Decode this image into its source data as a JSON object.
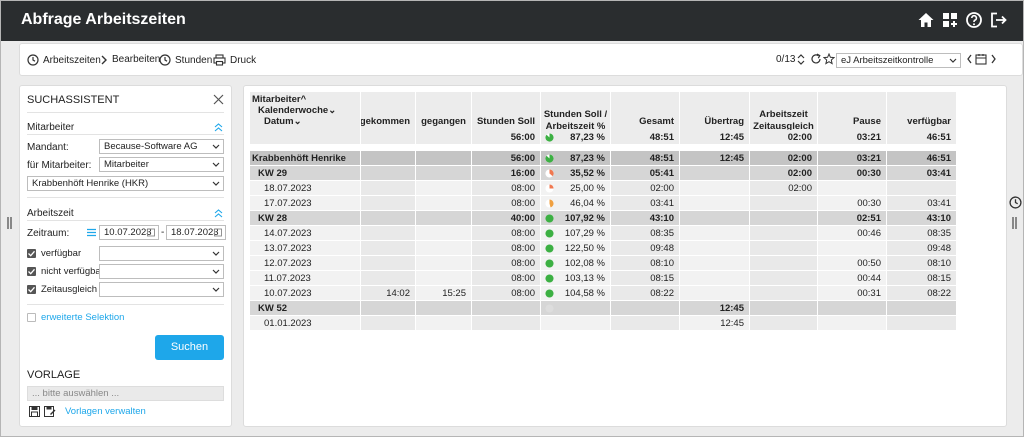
{
  "app": {
    "title": "Abfrage Arbeitszeiten"
  },
  "header_icons": [
    "home-icon",
    "dashboard-add-icon",
    "help-icon",
    "logout-icon"
  ],
  "toolbar": {
    "items": [
      {
        "label": "Arbeitszeiten",
        "icon": "clock-icon"
      },
      {
        "label": "Bearbeiten",
        "icon": "chevron-right-icon"
      },
      {
        "label": "Stunden",
        "icon": "clock-icon"
      },
      {
        "label": "Druck",
        "icon": "printer-icon"
      }
    ],
    "pager": "0/13",
    "view_select": "eJ Arbeitszeitkontrolle"
  },
  "sidebar": {
    "title": "SUCHASSISTENT",
    "section_employee": "Mitarbeiter",
    "mandant_label": "Mandant:",
    "mandant_value": "Because-Software AG",
    "for_employee_label": "für Mitarbeiter:",
    "for_employee_value": "Mitarbeiter",
    "employee_value": "Krabbenhöft Henrike (HKR)",
    "section_worktime": "Arbeitszeit",
    "period_label": "Zeitraum:",
    "period_from": "10.07.2023",
    "period_sep": "-",
    "period_to": "18.07.2023",
    "checks": [
      {
        "label": "verfügbar",
        "checked": true
      },
      {
        "label": "nicht verfügbar",
        "checked": true
      },
      {
        "label": "Zeitausgleich",
        "checked": true
      }
    ],
    "extended_label": "erweiterte Selektion",
    "search_label": "Suchen",
    "template_title": "VORLAGE",
    "template_placeholder": "... bitte auswählen ...",
    "manage_templates_label": "Vorlagen verwalten"
  },
  "table": {
    "group_headers": {
      "employee": "Mitarbeiter",
      "week": "Kalenderwoche",
      "date": "Datum"
    },
    "columns": {
      "came": "gekommen",
      "left": "gegangen",
      "target": "Stunden Soll",
      "ratio_line1": "Stunden Soll /",
      "ratio_line2": "Arbeitszeit %",
      "total": "Gesamt",
      "carry": "Übertrag",
      "worktime_group": "Arbeitszeit",
      "comp": "Zeitausgleich",
      "pause": "Pause",
      "avail": "verfügbar"
    },
    "totals": {
      "target": "56:00",
      "pct": "87,23 %",
      "total": "48:51",
      "carry": "12:45",
      "comp": "02:00",
      "pause": "03:21",
      "avail": "46:51",
      "pie": 0.87,
      "color": "#3cb043"
    },
    "rows": [
      {
        "kind": "employee",
        "label": "Krabbenhöft Henrike",
        "came": "",
        "left": "",
        "target": "56:00",
        "pct": "87,23 %",
        "total": "48:51",
        "carry": "12:45",
        "comp": "02:00",
        "pause": "03:21",
        "avail": "46:51",
        "pie": 0.87,
        "color": "#3cb043"
      },
      {
        "kind": "week",
        "label": "KW 29",
        "came": "",
        "left": "",
        "target": "16:00",
        "pct": "35,52 %",
        "total": "05:41",
        "carry": "",
        "comp": "02:00",
        "pause": "00:30",
        "avail": "03:41",
        "pie": 0.36,
        "color": "#f07850"
      },
      {
        "kind": "day",
        "label": "18.07.2023",
        "came": "",
        "left": "",
        "target": "08:00",
        "pct": "25,00 %",
        "total": "02:00",
        "carry": "",
        "comp": "02:00",
        "pause": "",
        "avail": "",
        "pie": 0.25,
        "color": "#f07850"
      },
      {
        "kind": "day",
        "label": "17.07.2023",
        "came": "",
        "left": "",
        "target": "08:00",
        "pct": "46,04 %",
        "total": "03:41",
        "carry": "",
        "comp": "",
        "pause": "00:30",
        "avail": "03:41",
        "pie": 0.46,
        "color": "#f0a040"
      },
      {
        "kind": "week",
        "label": "KW 28",
        "came": "",
        "left": "",
        "target": "40:00",
        "pct": "107,92 %",
        "total": "43:10",
        "carry": "",
        "comp": "",
        "pause": "02:51",
        "avail": "43:10",
        "pie": 1,
        "color": "#3cb043"
      },
      {
        "kind": "day",
        "label": "14.07.2023",
        "came": "",
        "left": "",
        "target": "08:00",
        "pct": "107,29 %",
        "total": "08:35",
        "carry": "",
        "comp": "",
        "pause": "00:46",
        "avail": "08:35",
        "pie": 1,
        "color": "#3cb043"
      },
      {
        "kind": "day",
        "label": "13.07.2023",
        "came": "",
        "left": "",
        "target": "08:00",
        "pct": "122,50 %",
        "total": "09:48",
        "carry": "",
        "comp": "",
        "pause": "",
        "avail": "09:48",
        "pie": 1,
        "color": "#3cb043"
      },
      {
        "kind": "day",
        "label": "12.07.2023",
        "came": "",
        "left": "",
        "target": "08:00",
        "pct": "102,08 %",
        "total": "08:10",
        "carry": "",
        "comp": "",
        "pause": "00:50",
        "avail": "08:10",
        "pie": 1,
        "color": "#3cb043"
      },
      {
        "kind": "day",
        "label": "11.07.2023",
        "came": "",
        "left": "",
        "target": "08:00",
        "pct": "103,13 %",
        "total": "08:15",
        "carry": "",
        "comp": "",
        "pause": "00:44",
        "avail": "08:15",
        "pie": 1,
        "color": "#3cb043"
      },
      {
        "kind": "day",
        "label": "10.07.2023",
        "came": "14:02",
        "left": "15:25",
        "target": "08:00",
        "pct": "104,58 %",
        "total": "08:22",
        "carry": "",
        "comp": "",
        "pause": "00:31",
        "avail": "08:22",
        "pie": 1,
        "color": "#3cb043"
      },
      {
        "kind": "week",
        "label": "KW 52",
        "came": "",
        "left": "",
        "target": "",
        "pct": "",
        "total": "",
        "carry": "12:45",
        "comp": "",
        "pause": "",
        "avail": "",
        "pie": 1,
        "color": "#dddddd"
      },
      {
        "kind": "day",
        "label": "01.01.2023",
        "came": "",
        "left": "",
        "target": "",
        "pct": "",
        "total": "",
        "carry": "12:45",
        "comp": "",
        "pause": "",
        "avail": "",
        "pie": -1,
        "color": ""
      }
    ]
  }
}
